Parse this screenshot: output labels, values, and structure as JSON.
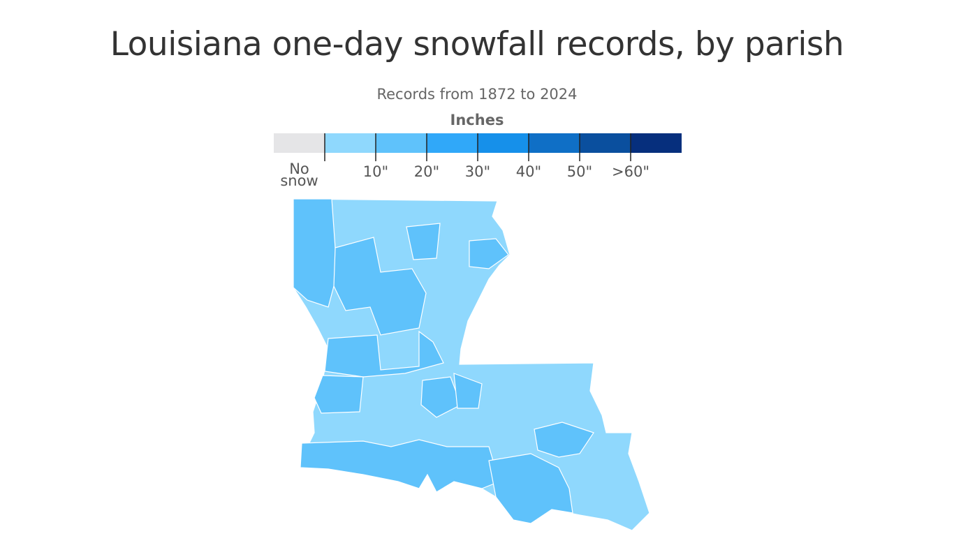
{
  "title": "Louisiana one-day snowfall records, by parish",
  "subtitle": "Records from 1872 to 2024",
  "legend": {
    "title": "Inches",
    "colors": [
      "#e5e5e7",
      "#8fd8fd",
      "#5fc2fb",
      "#30a8f9",
      "#1690ea",
      "#0f6fc6",
      "#0a4f9e",
      "#062f7d"
    ],
    "labels": [
      "No snow",
      "10\"",
      "20\"",
      "30\"",
      "40\"",
      "50\"",
      ">60\""
    ]
  }
}
